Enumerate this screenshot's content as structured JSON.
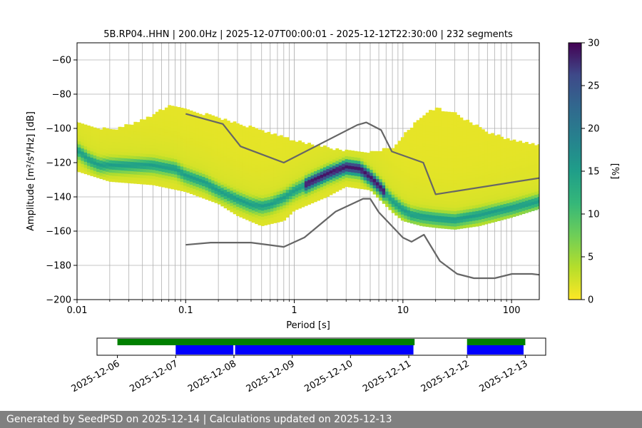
{
  "chart_data": [
    {
      "type": "heatmap",
      "title": "5B.RP04..HHN | 200.0Hz | 2025-12-07T00:00:01 - 2025-12-12T22:30:00 | 232 segments",
      "xlabel": "Period [s]",
      "ylabel": "Amplitude [m²/s⁴/Hz] [dB]",
      "xscale": "log",
      "xlim": [
        0.01,
        180
      ],
      "ylim": [
        -200,
        -50
      ],
      "x_ticks": [
        0.01,
        0.1,
        1,
        10,
        100
      ],
      "x_tick_labels": [
        "0.01",
        "0.1",
        "1",
        "10",
        "100"
      ],
      "y_ticks": [
        -200,
        -180,
        -160,
        -140,
        -120,
        -100,
        -80,
        -60
      ],
      "y_tick_labels": [
        "−200",
        "−180",
        "−160",
        "−140",
        "−120",
        "−100",
        "−80",
        "−60"
      ],
      "grid": true,
      "colorbar": {
        "label": "[%]",
        "range": [
          0,
          30
        ],
        "ticks": [
          0,
          5,
          10,
          15,
          20,
          25,
          30
        ],
        "tick_labels": [
          "0",
          "5",
          "10",
          "15",
          "20",
          "25",
          "30"
        ],
        "colormap": "viridis_r"
      },
      "mode_curve": {
        "period": [
          0.01,
          0.013,
          0.016,
          0.02,
          0.03,
          0.05,
          0.08,
          0.1,
          0.15,
          0.2,
          0.3,
          0.4,
          0.5,
          0.6,
          0.8,
          1,
          1.5,
          2,
          3,
          4,
          5,
          6,
          8,
          10,
          12,
          15,
          20,
          30,
          50,
          100,
          180
        ],
        "amplitude": [
          -113,
          -119,
          -122,
          -122,
          -122,
          -122,
          -124,
          -128,
          -132,
          -137,
          -142,
          -145,
          -146,
          -145,
          -141,
          -137,
          -131,
          -127,
          -123,
          -124,
          -129,
          -134,
          -143,
          -148,
          -151,
          -152,
          -153,
          -154,
          -151,
          -147,
          -143
        ]
      },
      "upper_spread": {
        "period": [
          0.01,
          0.02,
          0.04,
          0.07,
          0.1,
          0.2,
          0.5,
          1,
          2,
          3,
          5,
          8,
          10,
          15,
          20,
          30,
          60,
          100,
          180
        ],
        "amplitude": [
          -97,
          -102,
          -96,
          -88,
          -89,
          -95,
          -102,
          -108,
          -112,
          -114,
          -115,
          -112,
          -105,
          -94,
          -89,
          -92,
          -103,
          -108,
          -111
        ]
      },
      "lower_spread": {
        "period": [
          0.01,
          0.02,
          0.05,
          0.1,
          0.2,
          0.3,
          0.5,
          0.8,
          1,
          2,
          3,
          5,
          8,
          10,
          15,
          20,
          30,
          50,
          100,
          180
        ],
        "amplitude": [
          -125,
          -131,
          -133,
          -137,
          -144,
          -151,
          -157,
          -154,
          -148,
          -140,
          -134,
          -136,
          -149,
          -154,
          -157,
          -158,
          -159,
          -157,
          -152,
          -147
        ]
      },
      "nhnm": {
        "period": [
          0.1,
          0.22,
          0.32,
          0.8,
          3.8,
          4.6,
          6.3,
          7.9,
          15.4,
          20,
          180
        ],
        "amplitude": [
          -91.5,
          -97.4,
          -110.5,
          -120,
          -98,
          -96.5,
          -101,
          -113.5,
          -120,
          -138.5,
          -129
        ]
      },
      "nlnm": {
        "period": [
          0.1,
          0.17,
          0.4,
          0.8,
          1.24,
          2.4,
          4.3,
          5,
          6,
          10,
          12,
          15.6,
          21.9,
          31.6,
          45,
          70,
          101,
          154,
          180
        ],
        "amplitude": [
          -168,
          -166.7,
          -166.7,
          -169.2,
          -163.7,
          -148.6,
          -141.1,
          -141.1,
          -149,
          -163.8,
          -166.2,
          -162.1,
          -177.5,
          -185,
          -187.5,
          -187.5,
          -185,
          -185,
          -185.5
        ]
      }
    },
    {
      "type": "timeline",
      "x_tick_labels": [
        "2025-12-06",
        "2025-12-07",
        "2025-12-08",
        "2025-12-09",
        "2025-12-10",
        "2025-12-11",
        "2025-12-12",
        "2025-12-13"
      ],
      "xlim": [
        -0.35,
        7.35
      ],
      "data_availability": [
        [
          0,
          5.1
        ],
        [
          6,
          7
        ]
      ],
      "psd_segments": [
        [
          1,
          1.99
        ],
        [
          2.02,
          5.08
        ],
        [
          6,
          6.97
        ]
      ],
      "colors": {
        "data_availability": "#008000",
        "psd_segments": "#0000ff"
      }
    }
  ],
  "footer": {
    "text": "Generated by SeedPSD on 2025-12-14 | Calculations updated on 2025-12-13"
  }
}
